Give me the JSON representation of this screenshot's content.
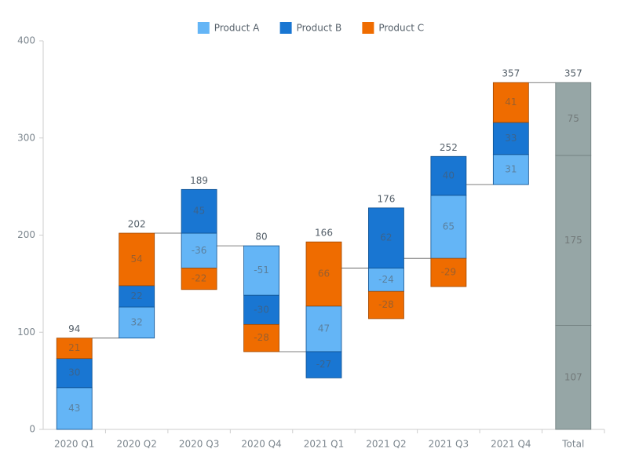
{
  "chart_data": {
    "type": "waterfall",
    "categories": [
      "2020 Q1",
      "2020 Q2",
      "2020 Q3",
      "2020 Q4",
      "2021 Q1",
      "2021 Q2",
      "2021 Q3",
      "2021 Q4",
      "Total"
    ],
    "series": [
      {
        "name": "Product A",
        "color": "#64b5f6",
        "values": [
          43,
          32,
          -36,
          -51,
          47,
          -24,
          65,
          31,
          107
        ]
      },
      {
        "name": "Product B",
        "color": "#1976d2",
        "values": [
          30,
          22,
          45,
          -30,
          -27,
          62,
          40,
          33,
          175
        ]
      },
      {
        "name": "Product C",
        "color": "#ef6c00",
        "values": [
          21,
          54,
          -22,
          -28,
          66,
          -28,
          -29,
          41,
          75
        ]
      }
    ],
    "totals": [
      94,
      202,
      189,
      80,
      166,
      176,
      252,
      357,
      357
    ],
    "show_total": true,
    "total_color": "#96a6a6",
    "ylim": [
      0,
      400
    ],
    "yticks": [
      0,
      100,
      200,
      300,
      400
    ],
    "grid": false,
    "legend": "top"
  }
}
